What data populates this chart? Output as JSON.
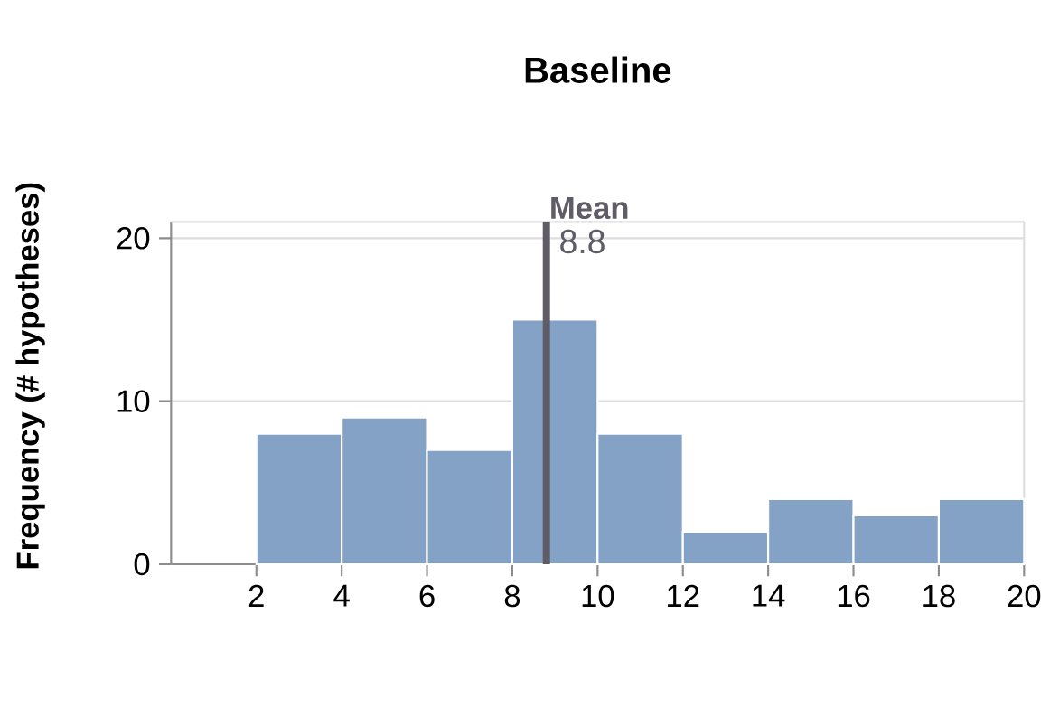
{
  "chart_data": {
    "type": "histogram",
    "title": "Baseline",
    "ylabel": "Frequency (# hypotheses)",
    "bins": [
      2,
      4,
      6,
      8,
      10,
      12,
      14,
      16,
      18,
      20
    ],
    "values": [
      8,
      9,
      7,
      15,
      8,
      2,
      4,
      3,
      4
    ],
    "color": "#84a2c5",
    "xlim": [
      0,
      20
    ],
    "xticks": [
      2,
      4,
      6,
      8,
      10,
      12,
      14,
      16,
      18,
      20
    ],
    "ylim": [
      0,
      21
    ],
    "yticks": [
      0,
      10,
      20
    ],
    "grid": "y",
    "ref_lines": [
      {
        "axis": "x",
        "value": 8.8,
        "label": "Mean",
        "color": "#5f5c68"
      }
    ],
    "annotations": [
      "8.8"
    ]
  }
}
